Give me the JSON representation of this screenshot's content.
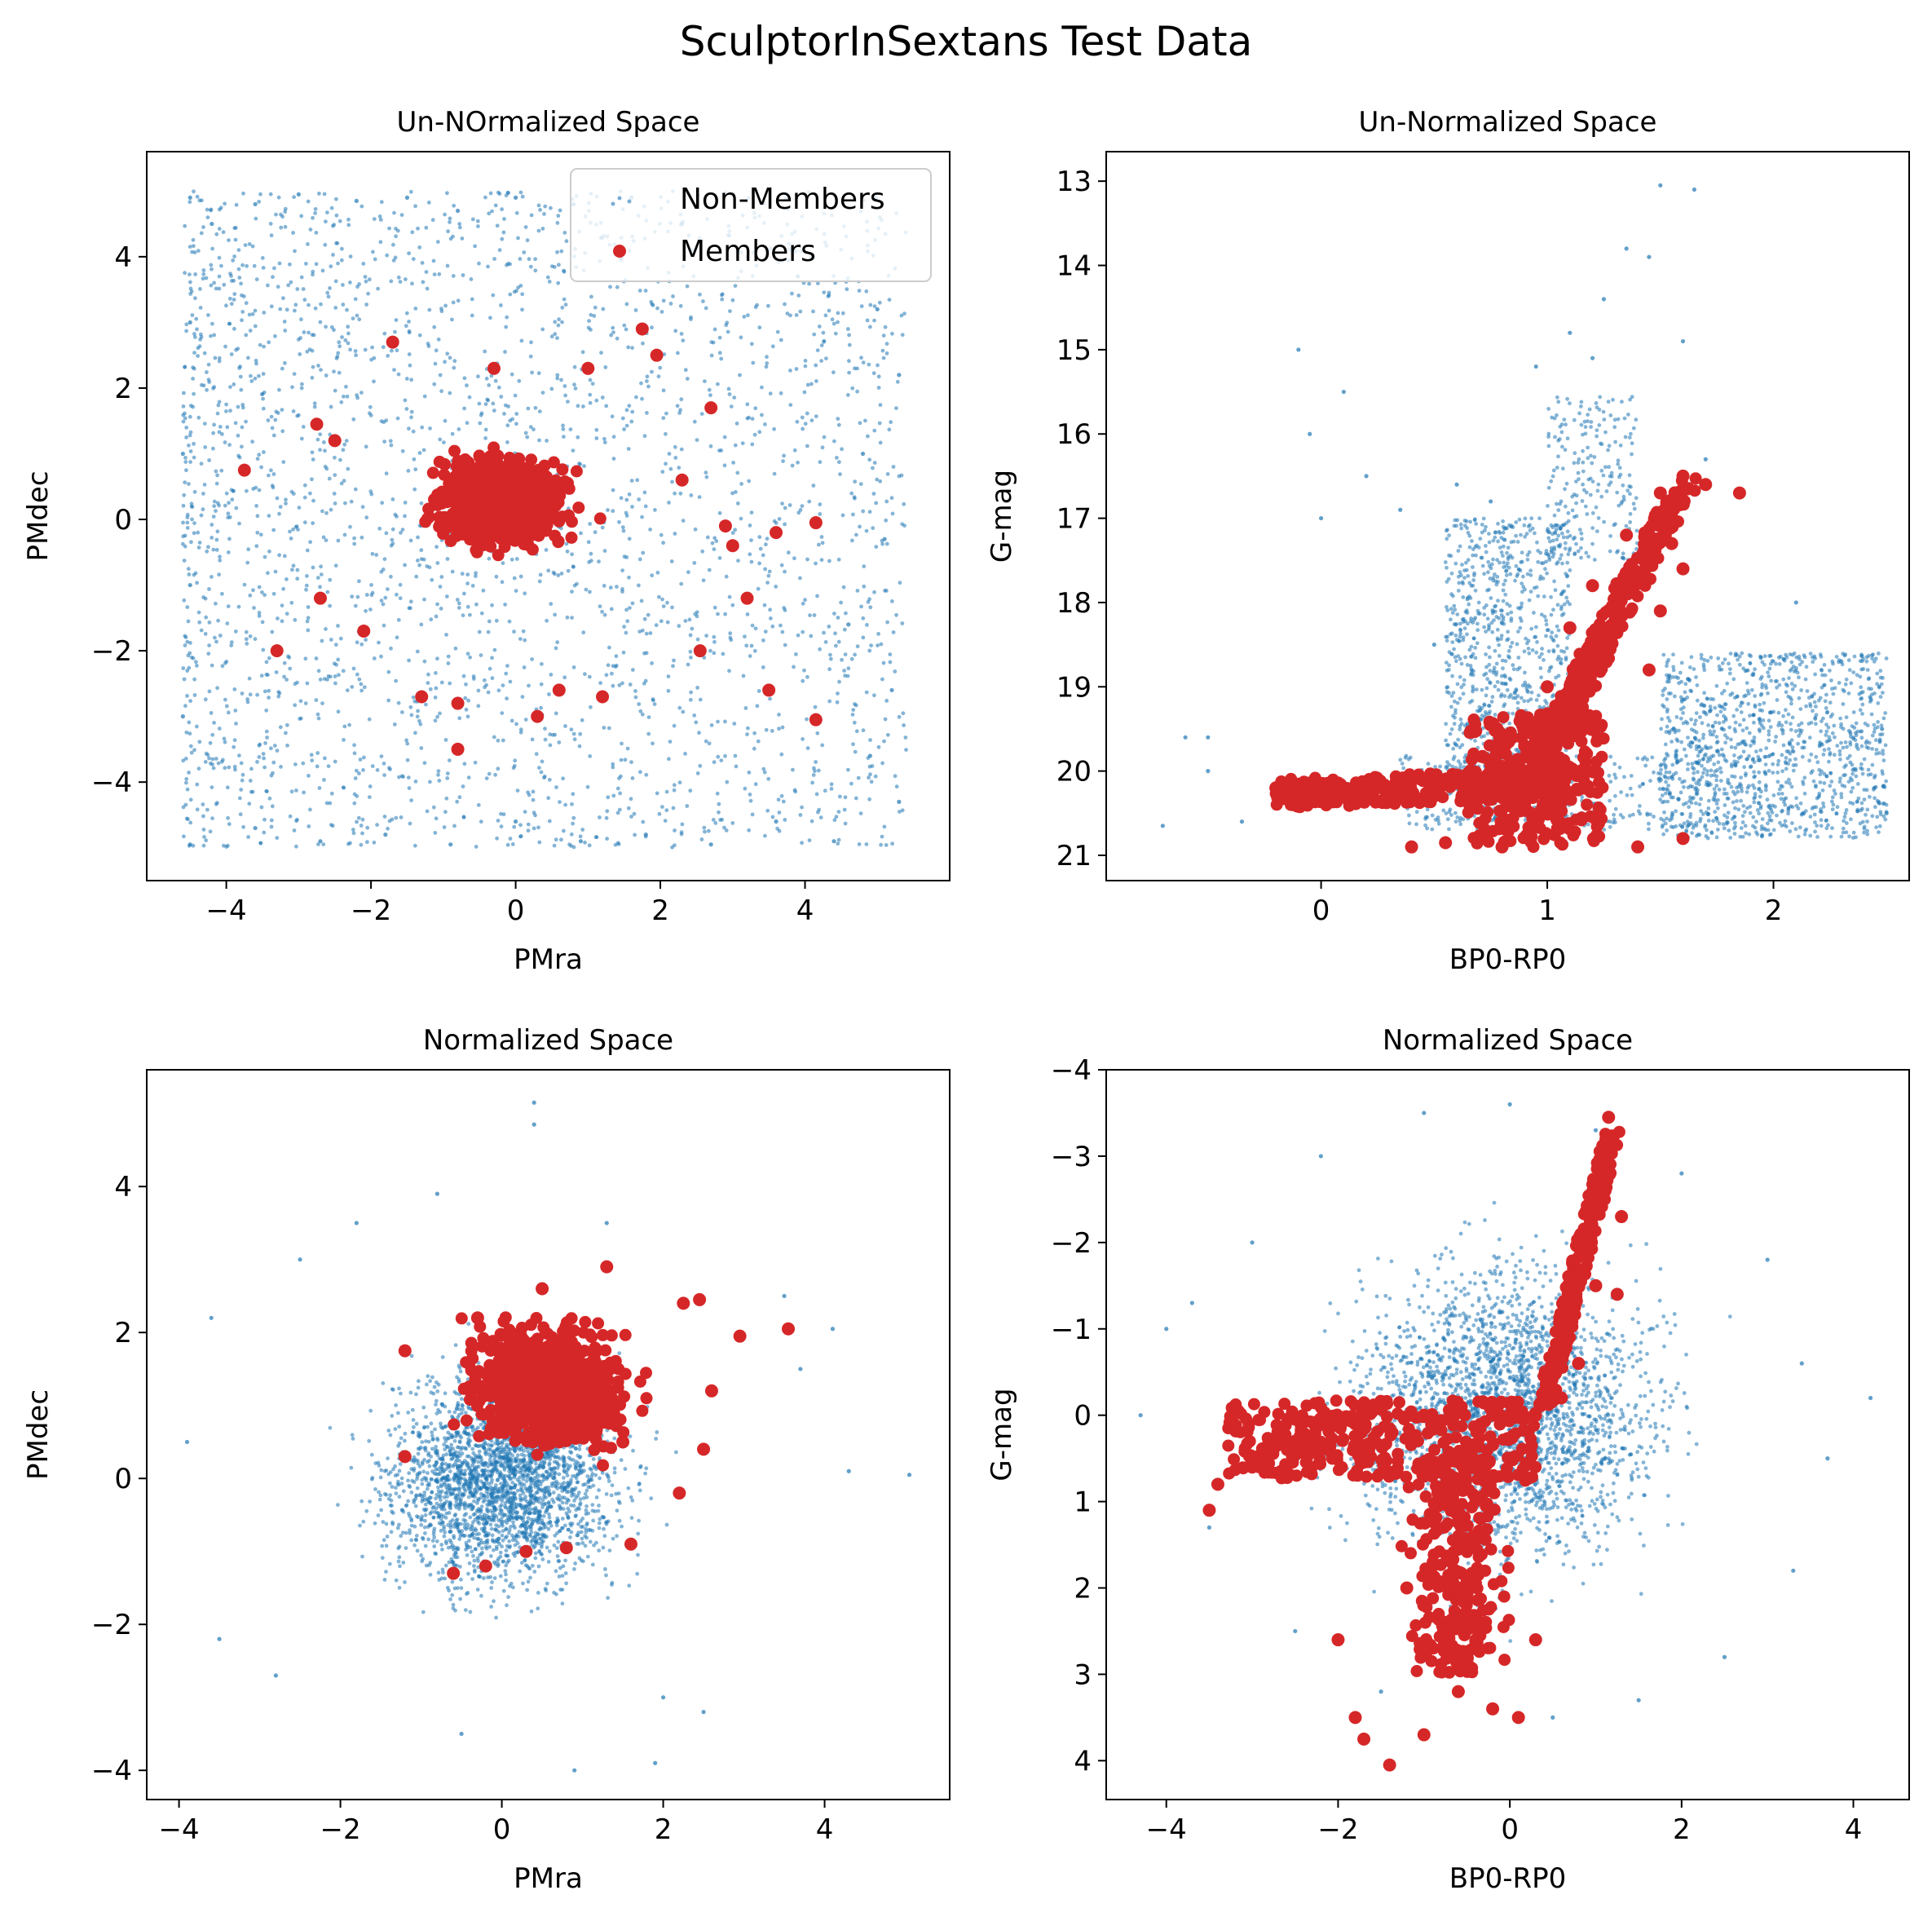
{
  "figure": {
    "suptitle": "SculptorInSextans Test Data",
    "colors": {
      "non_members": "#1f77b4",
      "members": "#d62728"
    },
    "legend": {
      "placement": "top-right",
      "panel": "tl",
      "entries": [
        "Non-Members",
        "Members"
      ]
    }
  },
  "chart_data": [
    {
      "id": "tl",
      "type": "scatter",
      "title": "Un-NOrmalized Space",
      "xlabel": "PMra",
      "ylabel": "PMdec",
      "xlim": [
        -5.1,
        6.0
      ],
      "ylim": [
        -5.5,
        5.6
      ],
      "y_inverted": false,
      "xticks": [
        -4,
        -2,
        0,
        2,
        4
      ],
      "yticks": [
        -4,
        -2,
        0,
        2,
        4
      ],
      "xtick_labels": [
        "−4",
        "−2",
        "0",
        "2",
        "4"
      ],
      "ytick_labels": [
        "−4",
        "−2",
        "0",
        "2",
        "4"
      ],
      "legend": true,
      "series": [
        {
          "name": "Non-Members",
          "color": "#1f77b4",
          "description_of_distribution": "uniform box x in [-4.6, 5.4], y in [-5, 5], denser toward negative PMra",
          "points": [
            [
              -4.5,
              4.9
            ],
            [
              -4.2,
              4.5
            ],
            [
              -3.6,
              4.8
            ],
            [
              -3.0,
              4.95
            ],
            [
              -2.2,
              4.85
            ],
            [
              -1.5,
              4.9
            ],
            [
              -0.8,
              4.7
            ],
            [
              0.0,
              4.9
            ],
            [
              0.8,
              4.8
            ],
            [
              1.6,
              4.9
            ],
            [
              2.3,
              4.5
            ],
            [
              3.2,
              4.0
            ],
            [
              3.9,
              3.7
            ],
            [
              5.0,
              3.2
            ],
            [
              5.3,
              2.2
            ],
            [
              4.8,
              1.0
            ],
            [
              5.1,
              -0.3
            ],
            [
              4.6,
              -1.6
            ],
            [
              5.2,
              -2.6
            ],
            [
              4.9,
              -3.6
            ],
            [
              5.3,
              -4.3
            ],
            [
              4.4,
              -4.9
            ],
            [
              3.6,
              -4.6
            ],
            [
              2.7,
              -4.95
            ],
            [
              1.8,
              -4.8
            ],
            [
              0.9,
              -4.9
            ],
            [
              0.0,
              -4.6
            ],
            [
              -0.9,
              -4.95
            ],
            [
              -1.8,
              -4.8
            ],
            [
              -2.7,
              -4.9
            ],
            [
              -3.6,
              -4.7
            ],
            [
              -4.5,
              -4.95
            ],
            [
              -4.6,
              -3.0
            ],
            [
              -4.5,
              -1.0
            ],
            [
              -4.6,
              1.0
            ],
            [
              -4.5,
              3.0
            ]
          ]
        },
        {
          "name": "Members",
          "color": "#d62728",
          "description_of_distribution": "dense blob centred near (-0.2, 0.3), radius ~1.5",
          "points": [
            [
              -3.75,
              0.75
            ],
            [
              -3.3,
              -2.0
            ],
            [
              -2.75,
              1.45
            ],
            [
              -2.5,
              1.2
            ],
            [
              -2.7,
              -1.2
            ],
            [
              -2.1,
              -1.7
            ],
            [
              -1.7,
              2.7
            ],
            [
              -1.3,
              -2.7
            ],
            [
              -0.8,
              -3.5
            ],
            [
              -0.8,
              -2.8
            ],
            [
              -0.3,
              2.3
            ],
            [
              0.3,
              -3.0
            ],
            [
              0.6,
              -2.6
            ],
            [
              1.0,
              2.3
            ],
            [
              1.2,
              -2.7
            ],
            [
              1.75,
              2.9
            ],
            [
              1.95,
              2.5
            ],
            [
              2.3,
              0.6
            ],
            [
              2.7,
              1.7
            ],
            [
              3.0,
              -0.4
            ],
            [
              3.2,
              -1.2
            ],
            [
              2.55,
              -2.0
            ],
            [
              3.5,
              -2.6
            ],
            [
              3.6,
              -0.2
            ],
            [
              4.15,
              -0.05
            ],
            [
              4.15,
              -3.05
            ],
            [
              2.9,
              -0.1
            ]
          ]
        }
      ]
    },
    {
      "id": "tr",
      "type": "scatter",
      "title": "Un-Normalized Space",
      "xlabel": "BP0-RP0",
      "ylabel": "G-mag",
      "xlim": [
        -0.95,
        2.6
      ],
      "ylim": [
        21.3,
        12.65
      ],
      "y_inverted": true,
      "xticks": [
        0,
        1,
        2
      ],
      "yticks": [
        13,
        14,
        15,
        16,
        17,
        18,
        19,
        20,
        21
      ],
      "xtick_labels": [
        "0",
        "1",
        "2"
      ],
      "ytick_labels": [
        "13",
        "14",
        "15",
        "16",
        "17",
        "18",
        "19",
        "20",
        "21"
      ],
      "legend": false,
      "series": [
        {
          "name": "Non-Members",
          "color": "#1f77b4",
          "points": [
            [
              -0.7,
              20.65
            ],
            [
              -0.6,
              19.6
            ],
            [
              -0.5,
              19.6
            ],
            [
              -0.5,
              20.0
            ],
            [
              -0.35,
              20.6
            ],
            [
              -0.1,
              15.0
            ],
            [
              -0.05,
              16.0
            ],
            [
              0.0,
              17.0
            ],
            [
              0.1,
              15.5
            ],
            [
              0.2,
              16.5
            ],
            [
              0.35,
              16.9
            ],
            [
              0.5,
              18.5
            ],
            [
              0.6,
              16.6
            ],
            [
              0.75,
              16.8
            ],
            [
              0.95,
              15.2
            ],
            [
              1.1,
              14.8
            ],
            [
              1.2,
              15.1
            ],
            [
              1.25,
              14.4
            ],
            [
              1.35,
              13.8
            ],
            [
              1.45,
              13.9
            ],
            [
              1.5,
              13.05
            ],
            [
              1.6,
              14.9
            ],
            [
              1.65,
              13.1
            ],
            [
              1.7,
              16.3
            ],
            [
              2.1,
              18.0
            ],
            [
              2.3,
              18.7
            ],
            [
              2.48,
              19.5
            ],
            [
              2.5,
              20.5
            ]
          ]
        },
        {
          "name": "Members",
          "color": "#d62728",
          "points": [
            [
              -0.2,
              20.2
            ],
            [
              0.0,
              20.2
            ],
            [
              0.4,
              20.9
            ],
            [
              0.55,
              20.85
            ],
            [
              0.8,
              20.9
            ],
            [
              1.4,
              20.9
            ],
            [
              1.6,
              20.8
            ],
            [
              0.9,
              19.7
            ],
            [
              1.0,
              19.0
            ],
            [
              1.1,
              18.3
            ],
            [
              1.2,
              17.8
            ],
            [
              1.35,
              17.2
            ],
            [
              1.5,
              16.7
            ],
            [
              1.6,
              16.5
            ],
            [
              1.7,
              16.6
            ],
            [
              1.85,
              16.7
            ],
            [
              1.55,
              17.3
            ],
            [
              1.6,
              17.6
            ],
            [
              1.5,
              18.1
            ],
            [
              1.45,
              18.8
            ]
          ]
        }
      ]
    },
    {
      "id": "bl",
      "type": "scatter",
      "title": "Normalized Space",
      "xlabel": "PMra",
      "ylabel": "PMdec",
      "xlim": [
        -4.4,
        5.55
      ],
      "ylim": [
        -4.4,
        5.6
      ],
      "y_inverted": false,
      "xticks": [
        -4,
        -2,
        0,
        2,
        4
      ],
      "yticks": [
        -4,
        -2,
        0,
        2,
        4
      ],
      "xtick_labels": [
        "−4",
        "−2",
        "0",
        "2",
        "4"
      ],
      "ytick_labels": [
        "−4",
        "−2",
        "0",
        "2",
        "4"
      ],
      "legend": false,
      "series": [
        {
          "name": "Non-Members",
          "color": "#1f77b4",
          "description_of_distribution": "roughly circular gaussian cloud centred at (0, 0), radius ~3",
          "points": [
            [
              -3.9,
              0.5
            ],
            [
              -3.6,
              2.2
            ],
            [
              -3.5,
              -2.2
            ],
            [
              -2.8,
              -2.7
            ],
            [
              -2.5,
              3.0
            ],
            [
              -1.8,
              3.5
            ],
            [
              -0.8,
              3.9
            ],
            [
              0.4,
              5.15
            ],
            [
              0.4,
              4.85
            ],
            [
              1.3,
              3.5
            ],
            [
              2.0,
              -3.0
            ],
            [
              2.5,
              -3.2
            ],
            [
              3.5,
              2.5
            ],
            [
              3.7,
              1.5
            ],
            [
              4.1,
              2.05
            ],
            [
              4.3,
              0.1
            ],
            [
              5.05,
              0.05
            ],
            [
              1.9,
              -3.9
            ],
            [
              0.9,
              -4.0
            ],
            [
              -0.5,
              -3.5
            ]
          ]
        },
        {
          "name": "Members",
          "color": "#d62728",
          "description_of_distribution": "dense blob centred near (0.5, 1.3)",
          "points": [
            [
              -1.2,
              1.75
            ],
            [
              -1.2,
              0.3
            ],
            [
              -0.6,
              -1.3
            ],
            [
              -0.2,
              -1.2
            ],
            [
              0.3,
              -1.0
            ],
            [
              0.8,
              -0.95
            ],
            [
              1.6,
              -0.9
            ],
            [
              2.2,
              -0.2
            ],
            [
              2.5,
              0.4
            ],
            [
              2.6,
              1.2
            ],
            [
              2.45,
              2.45
            ],
            [
              2.25,
              2.4
            ],
            [
              2.95,
              1.95
            ],
            [
              3.55,
              2.05
            ],
            [
              1.3,
              2.9
            ],
            [
              0.5,
              2.6
            ],
            [
              -0.3,
              2.2
            ],
            [
              0.5,
              1.3
            ],
            [
              1.0,
              1.5
            ],
            [
              0.0,
              0.9
            ],
            [
              1.5,
              0.5
            ]
          ]
        }
      ]
    },
    {
      "id": "br",
      "type": "scatter",
      "title": "Normalized Space",
      "xlabel": "BP0-RP0",
      "ylabel": "G-mag",
      "xlim": [
        -4.7,
        4.65
      ],
      "ylim": [
        4.45,
        -4.0
      ],
      "y_inverted": true,
      "xticks": [
        -4,
        -2,
        0,
        2,
        4
      ],
      "yticks": [
        -4,
        -3,
        -2,
        -1,
        0,
        1,
        2,
        3,
        4
      ],
      "xtick_labels": [
        "−4",
        "−2",
        "0",
        "2",
        "4"
      ],
      "ytick_labels": [
        "−4",
        "−3",
        "−2",
        "−1",
        "0",
        "1",
        "2",
        "3",
        "4"
      ],
      "legend": false,
      "series": [
        {
          "name": "Non-Members",
          "color": "#1f77b4",
          "description_of_distribution": "roughly circular cloud centred at (0, 0), radius ~3.5",
          "points": [
            [
              -4.3,
              0.0
            ],
            [
              -4.0,
              -1.0
            ],
            [
              -3.7,
              -1.3
            ],
            [
              -3.0,
              -2.0
            ],
            [
              -2.2,
              -3.0
            ],
            [
              -1.0,
              -3.5
            ],
            [
              0.0,
              -3.6
            ],
            [
              1.0,
              -3.3
            ],
            [
              2.0,
              -2.8
            ],
            [
              3.0,
              -1.8
            ],
            [
              3.4,
              -0.6
            ],
            [
              3.7,
              0.5
            ],
            [
              4.2,
              -0.2
            ],
            [
              3.3,
              1.8
            ],
            [
              2.5,
              2.8
            ],
            [
              1.5,
              3.3
            ],
            [
              0.5,
              3.5
            ],
            [
              -1.5,
              3.2
            ],
            [
              -2.5,
              2.5
            ],
            [
              -3.5,
              1.3
            ]
          ]
        },
        {
          "name": "Members",
          "color": "#d62728",
          "description_of_distribution": "horizontal band near G=0, vertical plume to G~4 near x=-0.6, upward arm to G~-3.5 near x=1.1",
          "points": [
            [
              -3.5,
              1.1
            ],
            [
              -3.4,
              0.8
            ],
            [
              -3.0,
              0.6
            ],
            [
              -2.5,
              0.3
            ],
            [
              -1.8,
              0.1
            ],
            [
              -1.0,
              0.0
            ],
            [
              -0.2,
              0.0
            ],
            [
              0.3,
              0.0
            ],
            [
              0.6,
              -0.2
            ],
            [
              0.8,
              -0.6
            ],
            [
              1.0,
              -1.5
            ],
            [
              1.1,
              -2.5
            ],
            [
              1.15,
              -3.45
            ],
            [
              1.3,
              -2.3
            ],
            [
              1.25,
              -1.4
            ],
            [
              -2.0,
              2.6
            ],
            [
              -1.8,
              3.5
            ],
            [
              -1.7,
              3.75
            ],
            [
              -1.4,
              4.05
            ],
            [
              -1.0,
              3.7
            ],
            [
              -0.6,
              3.2
            ],
            [
              -0.2,
              3.4
            ],
            [
              0.1,
              3.5
            ],
            [
              0.3,
              2.6
            ],
            [
              -0.6,
              1.5
            ],
            [
              -1.2,
              2.0
            ]
          ]
        }
      ]
    }
  ]
}
